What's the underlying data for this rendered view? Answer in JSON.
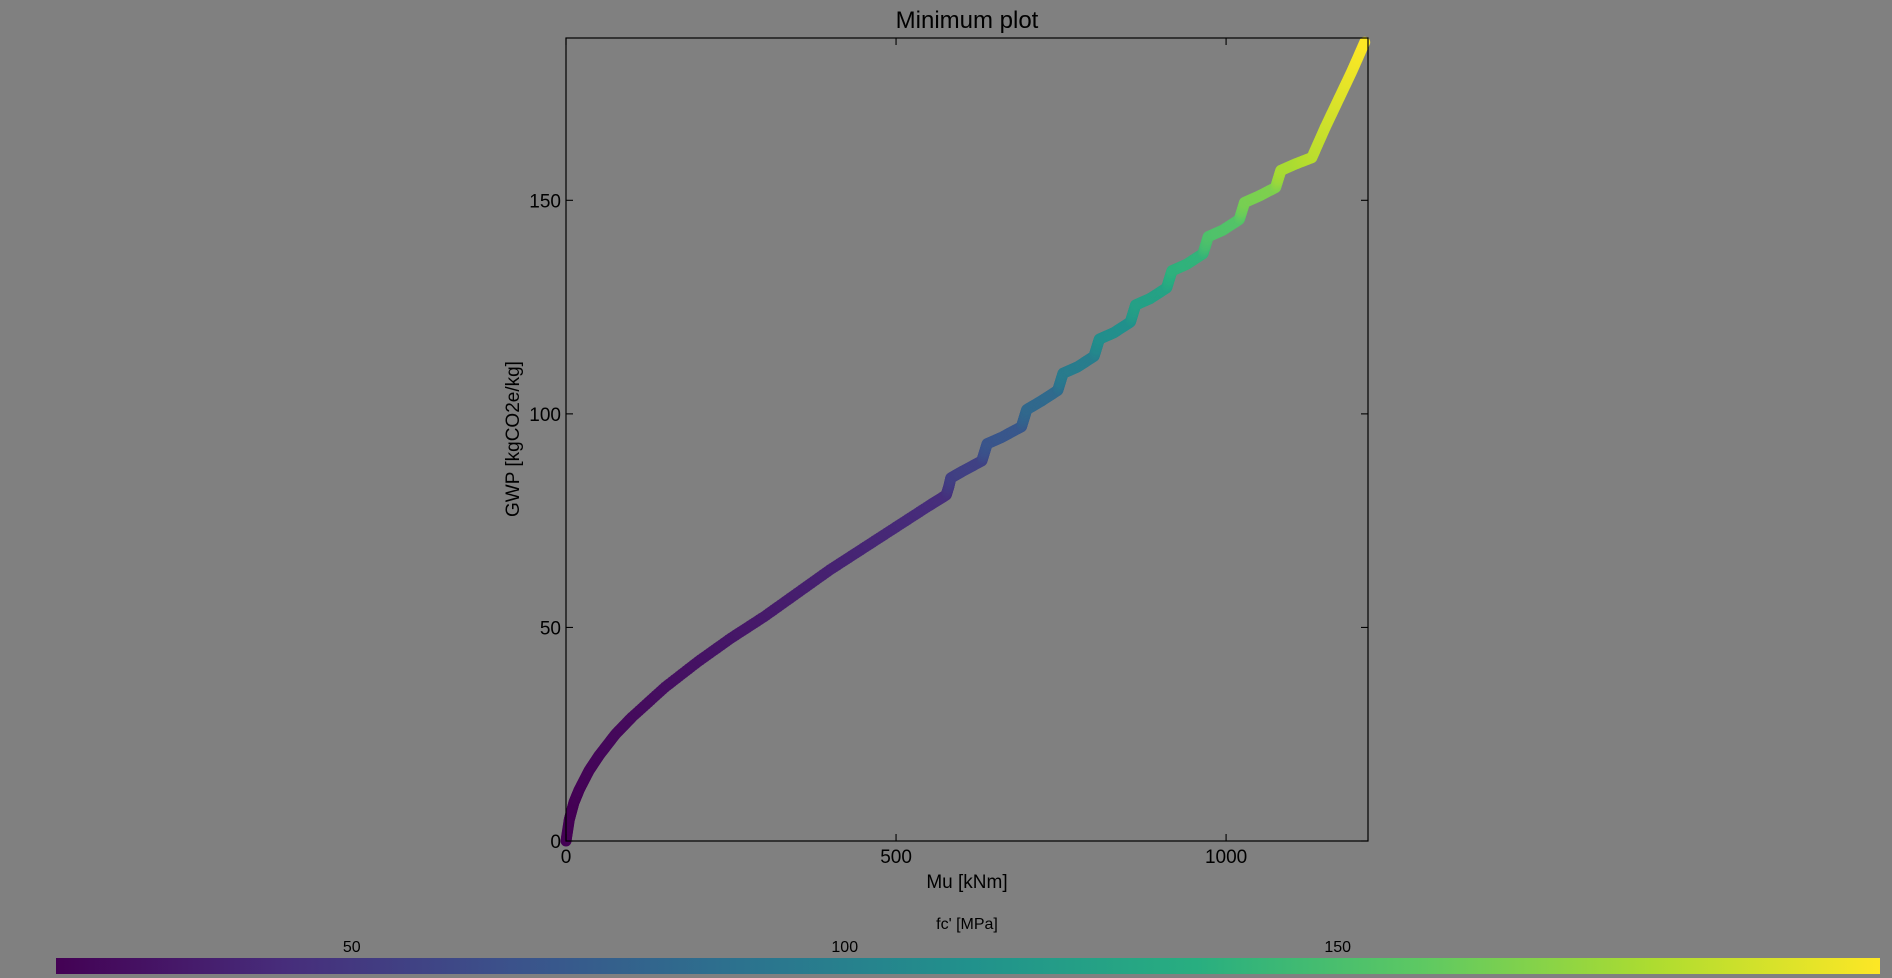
{
  "chart_data": {
    "type": "scatter",
    "title": "Minimum plot",
    "xlabel": "Mu [kNm]",
    "ylabel": "GWP [kgCO2e/kg]",
    "xlim": [
      0,
      1215
    ],
    "ylim": [
      0,
      188
    ],
    "xticks": [
      0,
      500,
      1000
    ],
    "yticks": [
      0,
      50,
      100,
      150
    ],
    "grid": false,
    "colormap": "viridis",
    "colorbar": {
      "label": "fc' [MPa]",
      "range": [
        20,
        205
      ],
      "ticks": [
        50,
        100,
        150
      ],
      "orientation": "horizontal",
      "placement": "bottom"
    },
    "series": [
      {
        "x": [
          0,
          5,
          12,
          20,
          35,
          50,
          75,
          100,
          150,
          200,
          250,
          300,
          350,
          400,
          450,
          500,
          550,
          576,
          580,
          583,
          600,
          630,
          634,
          638,
          660,
          690,
          694,
          698,
          720,
          745,
          749,
          753,
          775,
          800,
          804,
          808,
          830,
          855,
          859,
          863,
          885,
          910,
          914,
          918,
          940,
          965,
          969,
          973,
          995,
          1020,
          1024,
          1028,
          1050,
          1075,
          1079,
          1083,
          1105,
          1130,
          1150,
          1170,
          1190,
          1210
        ],
        "y": [
          0,
          5,
          9,
          12,
          16.5,
          20,
          25,
          29,
          36,
          42,
          47.5,
          52.5,
          58,
          63.5,
          68.5,
          73.5,
          78.5,
          81,
          83,
          85,
          86.5,
          89,
          91,
          93,
          94.5,
          97,
          99,
          101,
          103,
          105.5,
          107.5,
          109.5,
          111,
          113.5,
          115.5,
          117.5,
          119,
          121.5,
          123.5,
          125.5,
          127,
          129.5,
          131.5,
          133.5,
          135,
          137.5,
          139.5,
          141.5,
          143,
          145.5,
          147.5,
          149.5,
          151,
          153,
          155,
          157,
          158.5,
          160,
          167,
          173.5,
          180,
          187
        ],
        "c": [
          20,
          20,
          20,
          21,
          22,
          23,
          24,
          25,
          27,
          29,
          31,
          33,
          35,
          37,
          39,
          41,
          43,
          44,
          50,
          54,
          55,
          56,
          64,
          68,
          69,
          70,
          78,
          82,
          83,
          84,
          92,
          96,
          97,
          98,
          106,
          110,
          111,
          112,
          120,
          124,
          125,
          126,
          134,
          138,
          139,
          140,
          148,
          152,
          153,
          154,
          162,
          166,
          167,
          168,
          176,
          180,
          181,
          185,
          190,
          195,
          200,
          205
        ]
      }
    ]
  }
}
